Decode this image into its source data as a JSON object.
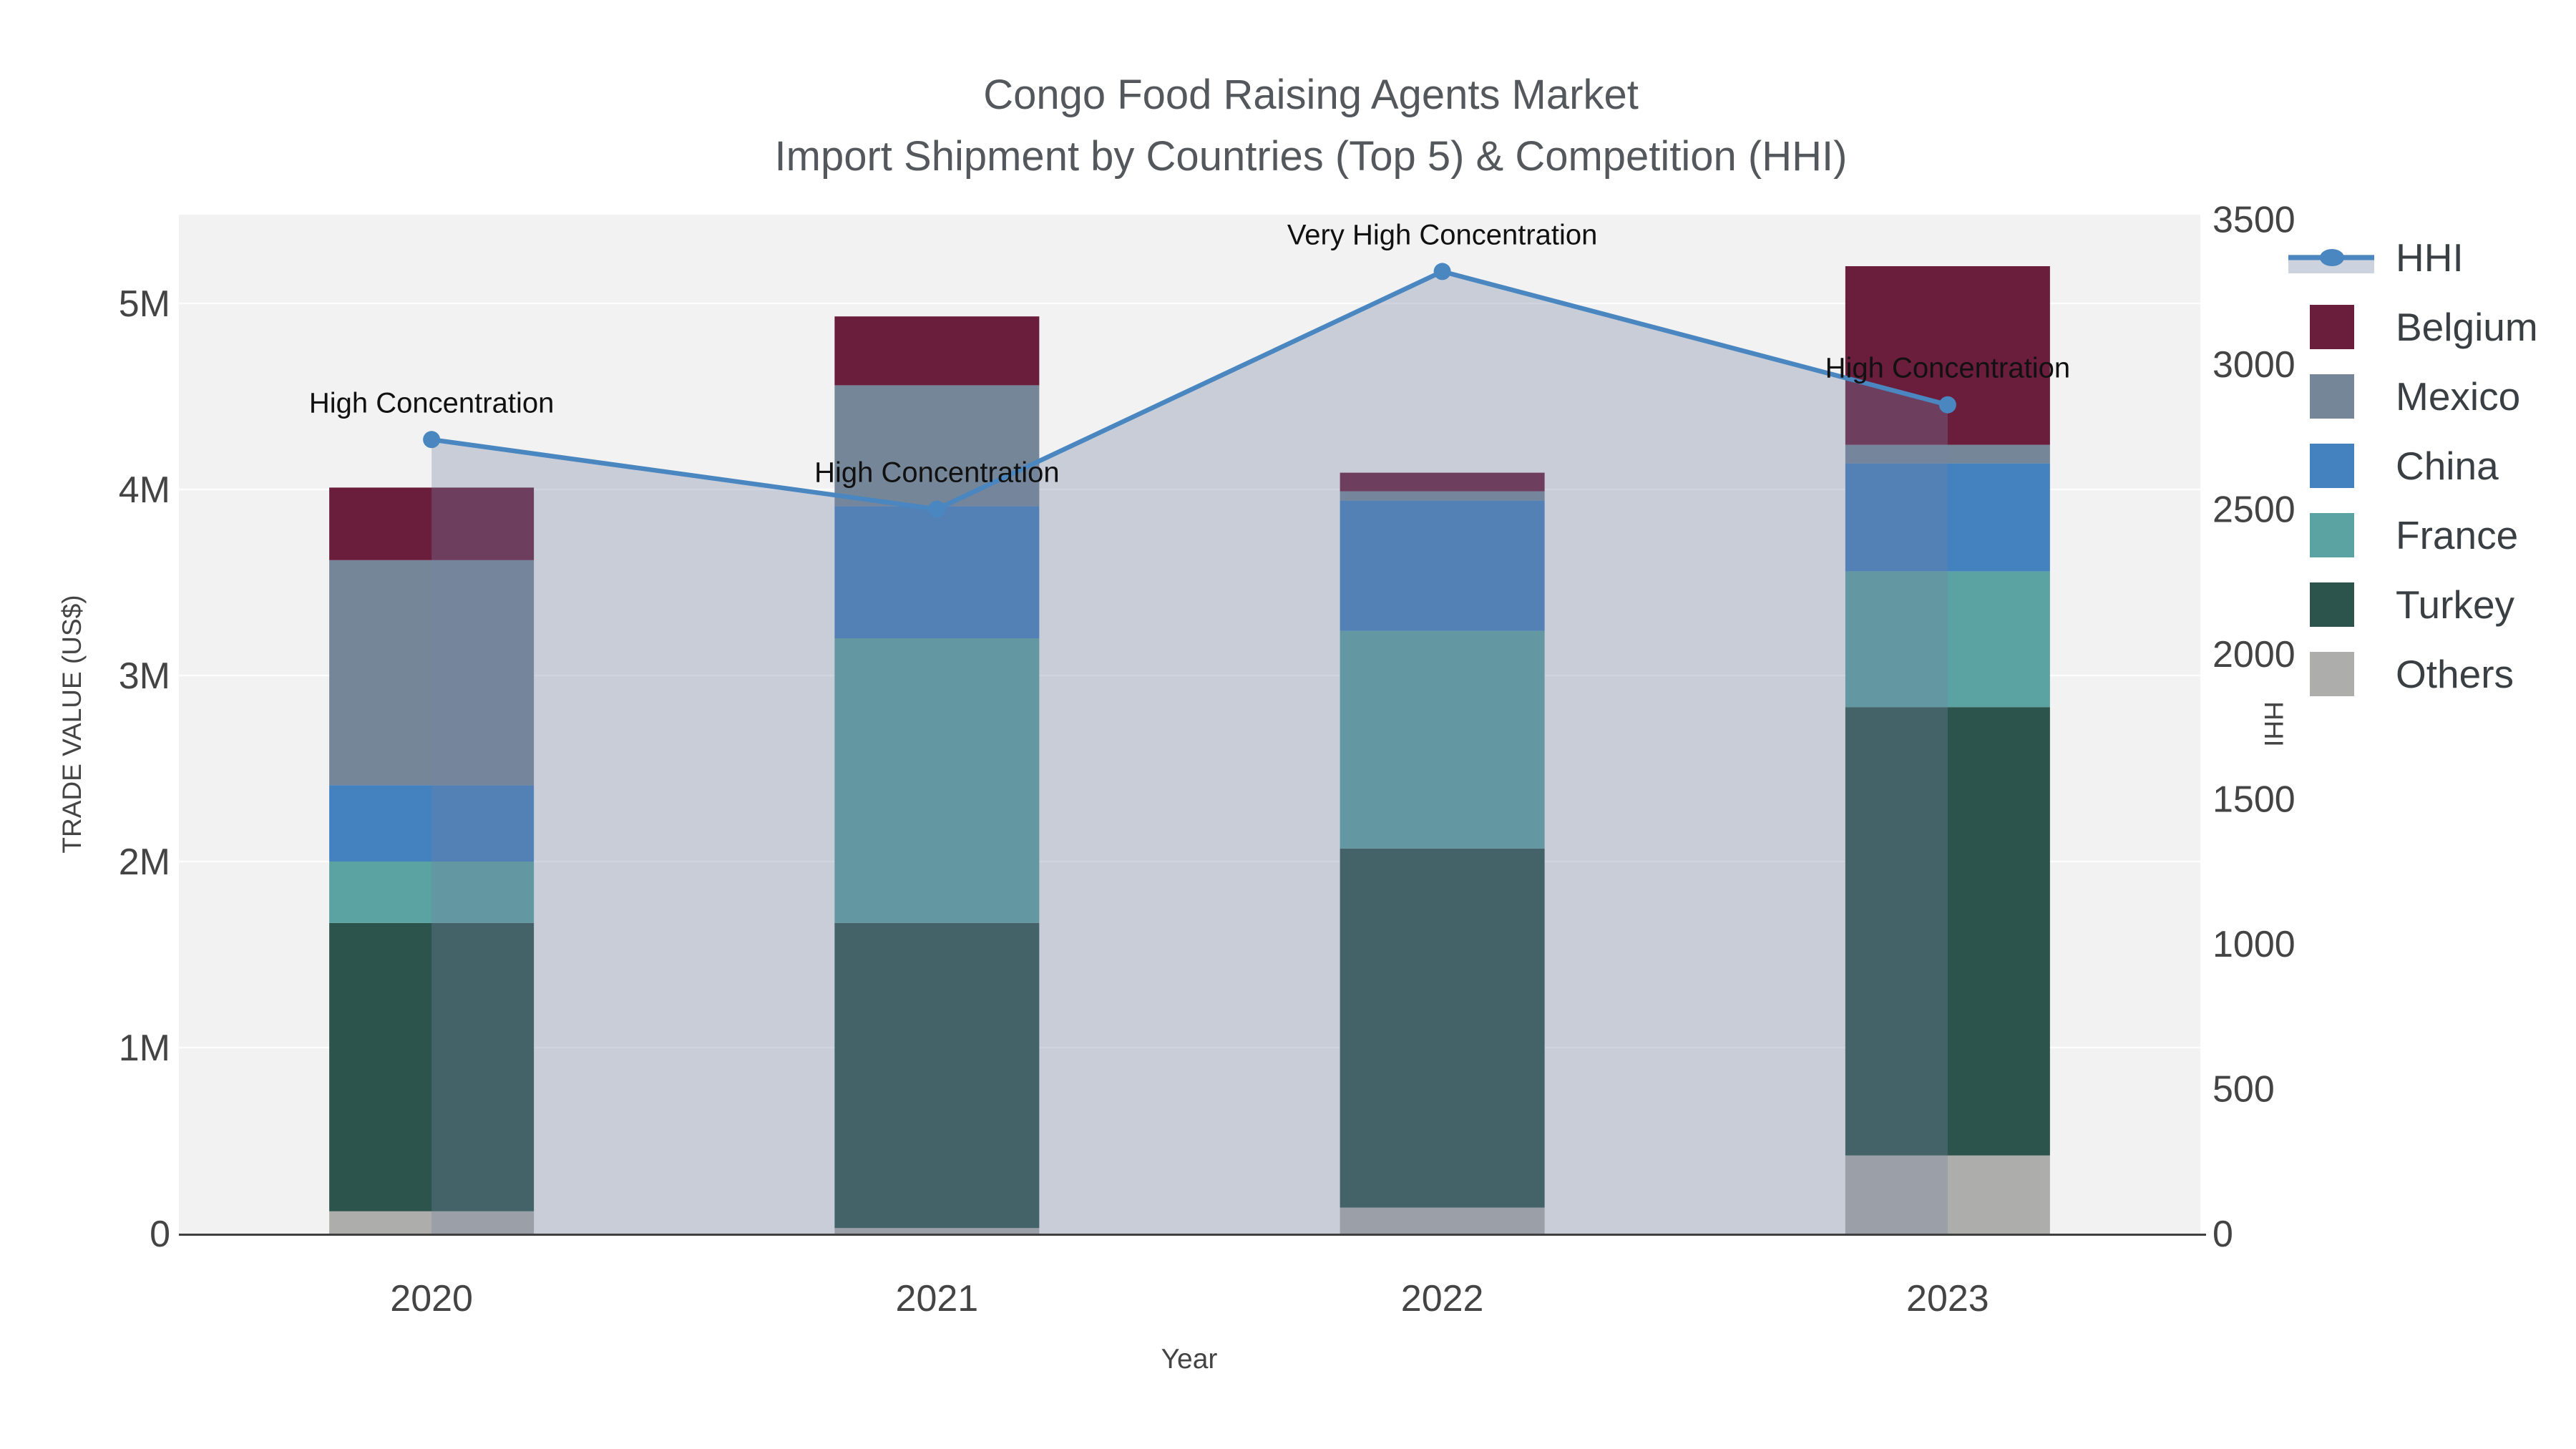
{
  "title": {
    "line1": "Congo Food Raising Agents Market",
    "line2": "Import Shipment by Countries (Top 5) & Competition (HHI)"
  },
  "axes": {
    "x": {
      "title": "Year",
      "ticks": [
        "2020",
        "2021",
        "2022",
        "2023"
      ]
    },
    "y_left": {
      "title": "TRADE VALUE (US$)",
      "ticks": [
        "0",
        "1M",
        "2M",
        "3M",
        "4M",
        "5M"
      ]
    },
    "y_right": {
      "title": "HHI",
      "ticks": [
        "0",
        "500",
        "1000",
        "1500",
        "2000",
        "2500",
        "3000",
        "3500"
      ]
    }
  },
  "legend": {
    "items": [
      "HHI",
      "Belgium",
      "Mexico",
      "China",
      "France",
      "Turkey",
      "Others"
    ]
  },
  "chart_data": {
    "type": "bar+line",
    "categories": [
      "2020",
      "2021",
      "2022",
      "2023"
    ],
    "bar_unit": "millions US$",
    "stack_order_bottom_to_top": [
      "Others",
      "Turkey",
      "France",
      "China",
      "Mexico",
      "Belgium"
    ],
    "series": [
      {
        "name": "Belgium",
        "color": "#6b1d3c",
        "values": [
          0.39,
          0.37,
          0.1,
          0.96
        ]
      },
      {
        "name": "Mexico",
        "color": "#758698",
        "values": [
          1.21,
          0.65,
          0.05,
          0.1
        ]
      },
      {
        "name": "China",
        "color": "#4381bf",
        "values": [
          0.41,
          0.71,
          0.7,
          0.58
        ]
      },
      {
        "name": "France",
        "color": "#5ba2a2",
        "values": [
          0.33,
          1.53,
          1.17,
          0.73
        ]
      },
      {
        "name": "Turkey",
        "color": "#2d544c",
        "values": [
          1.55,
          1.64,
          1.93,
          2.41
        ]
      },
      {
        "name": "Others",
        "color": "#adadab",
        "values": [
          0.12,
          0.03,
          0.14,
          0.42
        ]
      }
    ],
    "hhi": {
      "name": "HHI",
      "color": "#4a86c0",
      "fill": "rgba(116,131,165,0.33)",
      "values": [
        2740,
        2500,
        3320,
        2860
      ]
    },
    "annotations": [
      "High Concentration",
      "High Concentration",
      "Very High Concentration",
      "High Concentration"
    ],
    "y_left_axis": {
      "label_vals_M": [
        0,
        1,
        2,
        3,
        4,
        5
      ],
      "range_M": [
        0,
        5.48
      ],
      "grid": true
    },
    "y_right_axis": {
      "label_vals": [
        0,
        500,
        1000,
        1500,
        2000,
        2500,
        3000,
        3500
      ],
      "range": [
        0,
        3516
      ]
    },
    "plot_bg": "#f2f2f2",
    "grid_color": "#ffffff",
    "axis_line_color": "#3f3f3f"
  }
}
